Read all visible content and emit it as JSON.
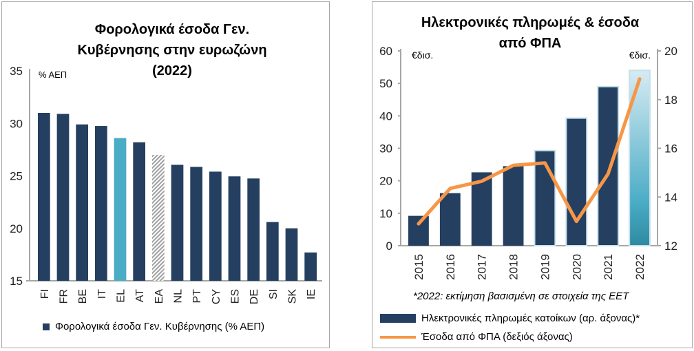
{
  "chart_data": [
    {
      "type": "bar",
      "title": "Φορολογικά έσοδα Γεν. Κυβέρνησης στην ευρωζώνη (2022)",
      "title_lines": [
        "Φορολογικά έσοδα Γεν.",
        "Κυβέρνησης στην ευρωζώνη",
        "(2022)"
      ],
      "unit_label": "% ΑΕΠ",
      "categories": [
        "FI",
        "FR",
        "BE",
        "IT",
        "EL",
        "AT",
        "EA",
        "NL",
        "PT",
        "CY",
        "ES",
        "DE",
        "SI",
        "SK",
        "IE"
      ],
      "values": [
        31.0,
        30.9,
        29.9,
        29.75,
        28.6,
        28.2,
        27.0,
        26.05,
        25.85,
        25.4,
        24.95,
        24.75,
        20.6,
        20.0,
        17.7
      ],
      "ylim": [
        15,
        35
      ],
      "yticks": [
        15,
        20,
        25,
        30,
        35
      ],
      "legend": "Φορολογικά έσοδα Γεν. Κυβέρνησης (% ΑΕΠ)",
      "colors": {
        "default": "#243f60",
        "highlight_EL": "#4bacc6",
        "EA": "hatched-grey"
      }
    },
    {
      "type": "bar+line",
      "title": "Ηλεκτρονικές πληρωμές & έσοδα από ΦΠΑ",
      "title_lines": [
        "Ηλεκτρονικές πληρωμές & έσοδα",
        "από ΦΠΑ"
      ],
      "left_unit": "€δισ.",
      "right_unit": "€δισ.",
      "categories": [
        "2015",
        "2016",
        "2017",
        "2018",
        "2019",
        "2020",
        "2021",
        "2022"
      ],
      "series": [
        {
          "name": "Ηλεκτρονικές πληρωμές κατοίκων (αρ. άξονας)*",
          "type": "bar",
          "axis": "left",
          "values": [
            9.2,
            16.2,
            22.6,
            24.5,
            29.3,
            39.3,
            49.0,
            54.0
          ],
          "color": "#243f60"
        },
        {
          "name": "Έσοδα από ΦΠΑ (δεξιός άξονας)",
          "type": "line",
          "axis": "right",
          "values": [
            12.9,
            14.35,
            14.65,
            15.3,
            15.4,
            13.0,
            14.95,
            18.85
          ],
          "color": "#f79646"
        }
      ],
      "ylim_left": [
        0,
        60
      ],
      "yticks_left": [
        0,
        10,
        20,
        30,
        40,
        50,
        60
      ],
      "ylim_right": [
        12,
        20
      ],
      "yticks_right": [
        12,
        14,
        16,
        18,
        20
      ],
      "note": "*2022: εκτίμηση βασισμένη σε στοιχεία της ΕΕΤ"
    }
  ]
}
